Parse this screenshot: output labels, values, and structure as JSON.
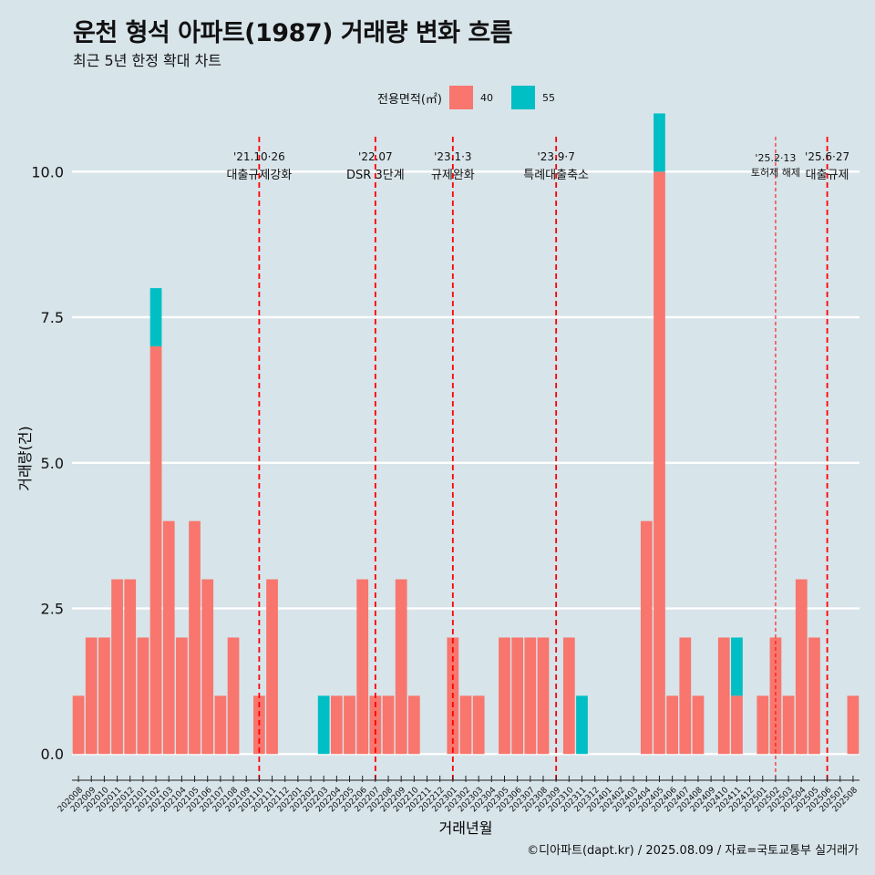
{
  "title": "운천 형석 아파트(1987) 거래량 변화 흐름",
  "subtitle": "최근 5년 한정 확대 차트",
  "caption": "©디아파트(dapt.kr) / 2025.08.09 / 자료=국토교통부 실거래가",
  "legend": {
    "title": "전용면적(㎡)",
    "items": [
      {
        "label": "40",
        "color": "#f8766d"
      },
      {
        "label": "55",
        "color": "#00bfc4"
      }
    ]
  },
  "chart_data": {
    "type": "bar",
    "stacked": true,
    "xlabel": "거래년월",
    "ylabel": "거래량(건)",
    "ylim": [
      -0.45,
      10.6
    ],
    "yticks": [
      0.0,
      2.5,
      5.0,
      7.5,
      10.0
    ],
    "ytick_labels": [
      "0.0",
      "2.5",
      "5.0",
      "7.5",
      "10.0"
    ],
    "categories": [
      "202008",
      "202009",
      "202010",
      "202011",
      "202012",
      "202101",
      "202102",
      "202103",
      "202104",
      "202105",
      "202106",
      "202107",
      "202108",
      "202109",
      "202110",
      "202111",
      "202112",
      "202201",
      "202202",
      "202203",
      "202204",
      "202205",
      "202206",
      "202207",
      "202208",
      "202209",
      "202210",
      "202211",
      "202212",
      "202301",
      "202302",
      "202303",
      "202304",
      "202305",
      "202306",
      "202307",
      "202308",
      "202309",
      "202310",
      "202311",
      "202312",
      "202401",
      "202402",
      "202403",
      "202404",
      "202405",
      "202406",
      "202407",
      "202408",
      "202409",
      "202410",
      "202411",
      "202412",
      "202501",
      "202502",
      "202503",
      "202504",
      "202505",
      "202506",
      "202507",
      "202508"
    ],
    "series": [
      {
        "name": "40",
        "color": "#f8766d",
        "values": [
          1,
          2,
          2,
          3,
          3,
          2,
          7,
          4,
          2,
          4,
          3,
          1,
          2,
          0,
          1,
          3,
          0,
          0,
          0,
          0,
          1,
          1,
          3,
          1,
          1,
          3,
          1,
          0,
          0,
          2,
          1,
          1,
          0,
          2,
          2,
          2,
          2,
          0,
          2,
          0,
          0,
          0,
          0,
          0,
          4,
          10,
          1,
          2,
          1,
          0,
          2,
          1,
          0,
          1,
          2,
          1,
          3,
          2,
          0,
          0,
          1
        ]
      },
      {
        "name": "55",
        "color": "#00bfc4",
        "values": [
          0,
          0,
          0,
          0,
          0,
          0,
          1,
          0,
          0,
          0,
          0,
          0,
          0,
          0,
          0,
          0,
          0,
          0,
          0,
          1,
          0,
          0,
          0,
          0,
          0,
          0,
          0,
          0,
          0,
          0,
          0,
          0,
          0,
          0,
          0,
          0,
          0,
          0,
          0,
          1,
          0,
          0,
          0,
          0,
          0,
          1,
          0,
          0,
          0,
          0,
          0,
          1,
          0,
          0,
          0,
          0,
          0,
          0,
          0,
          0,
          0
        ]
      }
    ],
    "annotations": [
      {
        "date_label": "'21.10·26",
        "event": "대출규제강화",
        "x_position": 14.5
      },
      {
        "date_label": "'22.07",
        "event": "DSR 3단계",
        "x_position": 23.5
      },
      {
        "date_label": "'23.1·3",
        "event": "규제완화",
        "x_position": 29.5
      },
      {
        "date_label": "'23.9·7",
        "event": "특례대출축소",
        "x_position": 37.5
      },
      {
        "date_label": "'25.2·13",
        "event": "토허제 해제",
        "x_position": 54.5
      },
      {
        "date_label": "'25.6·27",
        "event": "대출규제",
        "x_position": 58.5
      }
    ]
  }
}
